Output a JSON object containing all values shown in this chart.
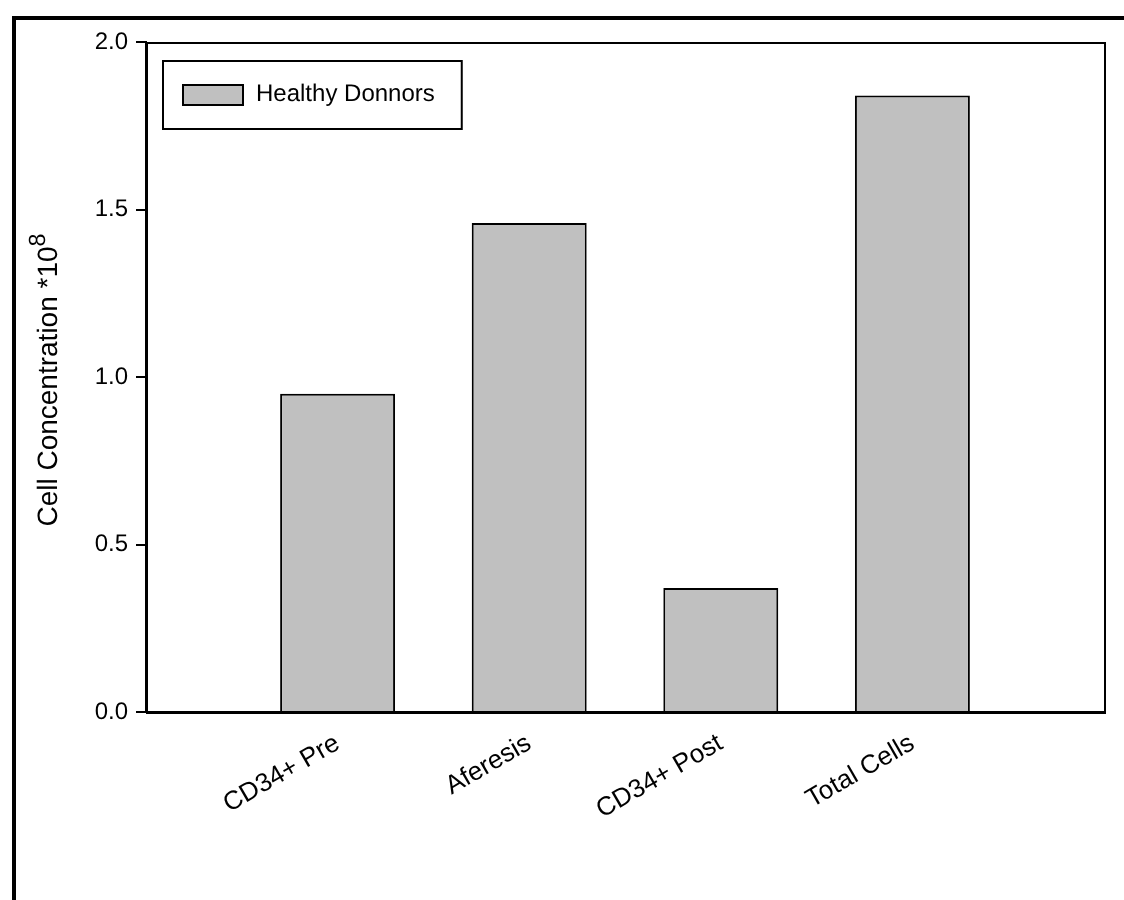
{
  "chart_data": {
    "type": "bar",
    "ylabel": "Cell Concentration *10$^{8}$",
    "categories": [
      "CD34+ Pre",
      "Aferesis",
      "CD34+ Post",
      "Total Cells"
    ],
    "series": [
      {
        "name": "Healthy Donnors",
        "color": "#c0c0c0",
        "values": [
          0.95,
          1.46,
          0.37,
          1.84
        ]
      }
    ],
    "ylim": [
      0,
      2
    ],
    "yticks": [
      {
        "value": 0,
        "label": "0.0"
      },
      {
        "value": 0.5,
        "label": "0.5"
      },
      {
        "value": 1,
        "label": "1.0"
      },
      {
        "value": 1.5,
        "label": "1.5"
      },
      {
        "value": 2,
        "label": "2.0"
      }
    ],
    "grid": false,
    "legend": "top left"
  }
}
